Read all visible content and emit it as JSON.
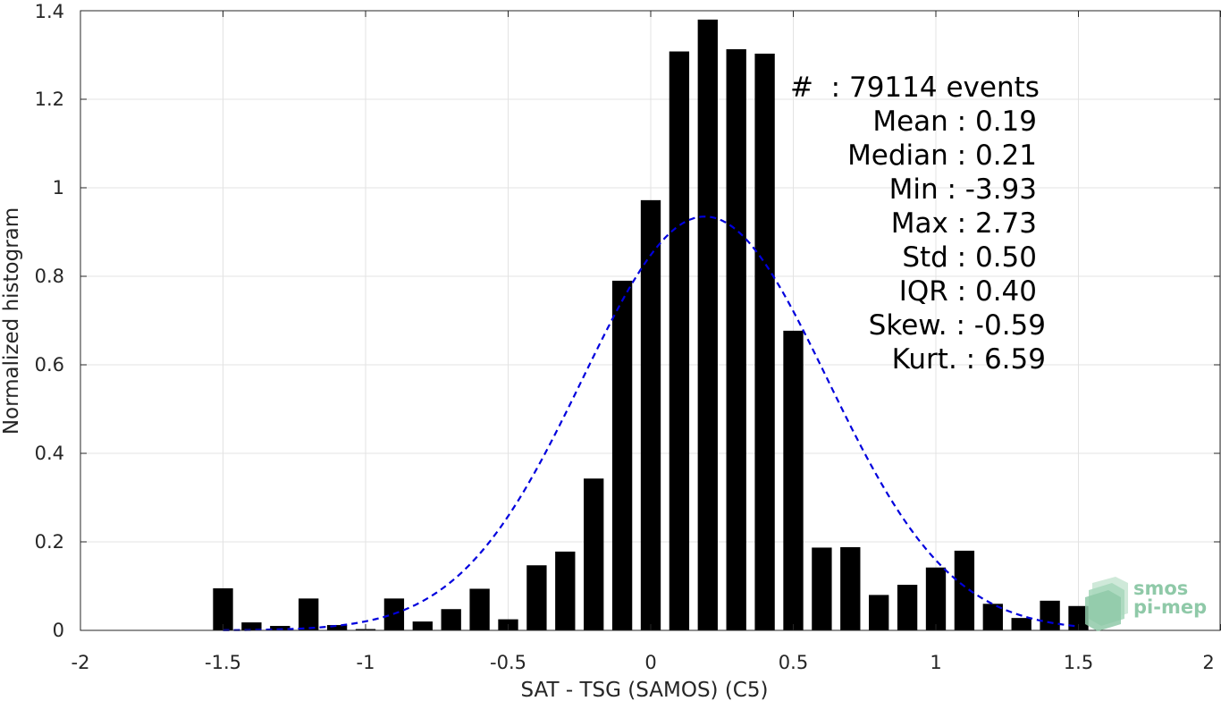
{
  "chart_data": {
    "type": "bar",
    "xlabel": "SAT - TSG (SAMOS) (C5)",
    "ylabel": "Normalized histogram",
    "xlim": [
      -2,
      2
    ],
    "ylim": [
      0,
      1.4
    ],
    "x_ticks": [
      -2,
      -1.5,
      -1,
      -0.5,
      0,
      0.5,
      1,
      1.5,
      2
    ],
    "x_tick_labels": [
      "-2",
      "-1.5",
      "-1",
      "-0.5",
      "0",
      "0.5",
      "1",
      "1.5",
      "2"
    ],
    "y_ticks": [
      0,
      0.2,
      0.4,
      0.6,
      0.8,
      1,
      1.2,
      1.4
    ],
    "y_tick_labels": [
      "0",
      "0.2",
      "0.4",
      "0.6",
      "0.8",
      "1",
      "1.2",
      "1.4"
    ],
    "grid": true,
    "bar_color": "#000000",
    "bar_width": 0.07,
    "bins": [
      -1.5,
      -1.4,
      -1.3,
      -1.2,
      -1.1,
      -1.0,
      -0.9,
      -0.8,
      -0.7,
      -0.6,
      -0.5,
      -0.4,
      -0.3,
      -0.2,
      -0.1,
      0.0,
      0.1,
      0.2,
      0.3,
      0.4,
      0.5,
      0.6,
      0.7,
      0.8,
      0.9,
      1.0,
      1.1,
      1.2,
      1.3,
      1.4,
      1.5
    ],
    "values": [
      0.095,
      0.018,
      0.01,
      0.072,
      0.012,
      0.003,
      0.072,
      0.02,
      0.048,
      0.094,
      0.025,
      0.147,
      0.178,
      0.343,
      0.79,
      0.972,
      1.308,
      1.38,
      1.313,
      1.303,
      0.677,
      0.187,
      0.188,
      0.08,
      0.103,
      0.142,
      0.18,
      0.06,
      0.028,
      0.067,
      0.055
    ],
    "fit_curve": {
      "style": "dashed",
      "color": "#0000dd",
      "type": "normal",
      "mean": 0.19,
      "std": 0.43,
      "peak": 0.935,
      "x_range": [
        -1.5,
        1.5
      ]
    },
    "annotations": {
      "count": "#  : 79114 events",
      "mean": "Mean : 0.19",
      "median": "Median : 0.21",
      "min": "Min : -3.93",
      "max": "Max : 2.73",
      "std": "Std : 0.50",
      "iqr": "IQR : 0.40",
      "skew": "Skew. : -0.59",
      "kurt": "Kurt. : 6.59"
    }
  },
  "logo": {
    "line1": "smos",
    "line2": "pi-mep",
    "color": "#8fc9a8"
  }
}
